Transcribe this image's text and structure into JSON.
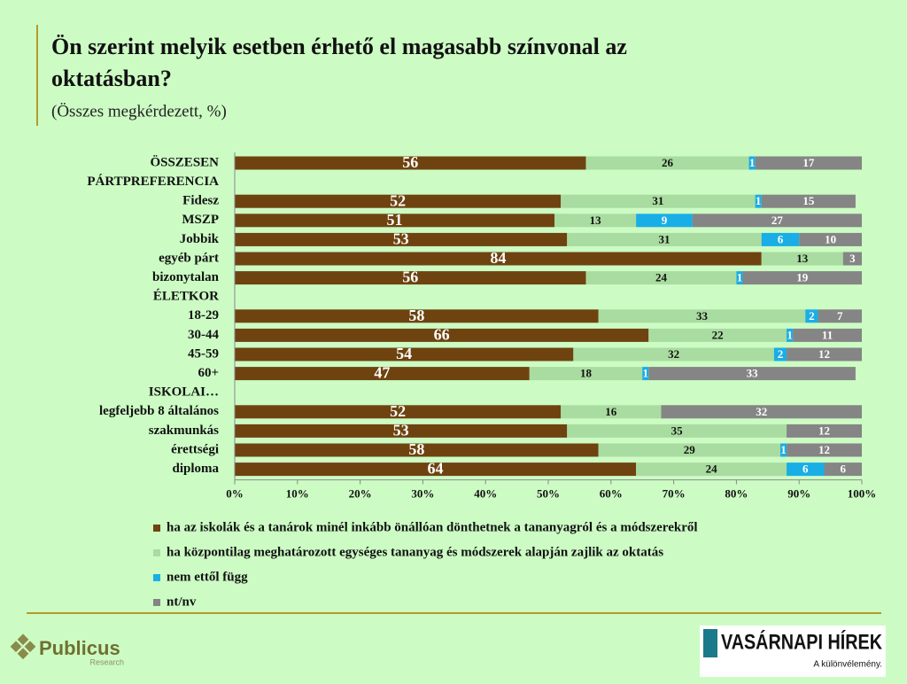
{
  "chart_data": {
    "type": "stacked-bar-horizontal",
    "title": "Ön szerint melyik esetben érhető el magasabb színvonal az oktatásban?",
    "subtitle": "(Összes megkérdezett, %)",
    "categories": [
      "ÖSSZESEN",
      "PÁRTPREFERENCIA",
      "Fidesz",
      "MSZP",
      "Jobbik",
      "egyéb párt",
      "bizonytalan",
      "ÉLETKOR",
      "18-29",
      "30-44",
      "45-59",
      "60+",
      "ISKOLAI…",
      "legfeljebb 8 általános",
      "szakmunkás",
      "érettségi",
      "diploma"
    ],
    "series": [
      {
        "name": "ha az iskolák és a tanárok minél inkább önállóan dönthetnek a tananyagról és a módszerekről",
        "color": "#6e4310",
        "values": [
          56,
          null,
          52,
          51,
          53,
          84,
          56,
          null,
          58,
          66,
          54,
          47,
          null,
          52,
          53,
          58,
          64
        ]
      },
      {
        "name": "ha központilag meghatározott egységes tananyag és módszerek alapján zajlik az oktatás",
        "color": "#a9dca0",
        "values": [
          26,
          null,
          31,
          13,
          31,
          13,
          24,
          null,
          33,
          22,
          32,
          18,
          null,
          16,
          35,
          29,
          24
        ]
      },
      {
        "name": "nem ettől függ",
        "color": "#19aee6",
        "values": [
          1,
          null,
          1,
          9,
          6,
          null,
          1,
          null,
          2,
          1,
          2,
          1,
          null,
          null,
          null,
          1,
          6
        ]
      },
      {
        "name": "nt/nv",
        "color": "#858585",
        "values": [
          17,
          null,
          15,
          27,
          10,
          3,
          19,
          null,
          7,
          11,
          12,
          33,
          null,
          32,
          12,
          12,
          6
        ]
      }
    ],
    "xlim": [
      0,
      100
    ],
    "xticks": [
      {
        "value": 0,
        "label": "0%"
      },
      {
        "value": 10,
        "label": "10%"
      },
      {
        "value": 20,
        "label": "20%"
      },
      {
        "value": 30,
        "label": "30%"
      },
      {
        "value": 40,
        "label": "40%"
      },
      {
        "value": 50,
        "label": "50%"
      },
      {
        "value": 60,
        "label": "60%"
      },
      {
        "value": 70,
        "label": "70%"
      },
      {
        "value": 80,
        "label": "80%"
      },
      {
        "value": 90,
        "label": "90%"
      },
      {
        "value": 100,
        "label": "100%"
      }
    ]
  },
  "footer": {
    "left_logo": "Publicus",
    "left_logo_sub": "Research",
    "right_logo": "VASÁRNAPI HÍREK",
    "right_logo_sub": "A különvélemény."
  }
}
